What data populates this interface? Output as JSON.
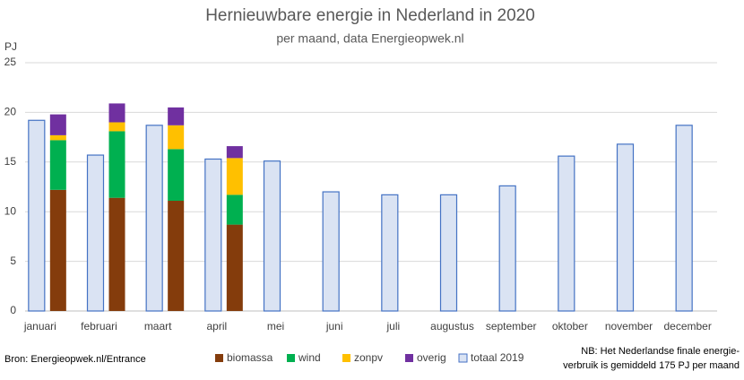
{
  "chart_data": {
    "type": "bar",
    "title": "Hernieuwbare energie in Nederland in 2020",
    "subtitle": "per maand, data Energieopwek.nl",
    "y_label": "PJ",
    "categories": [
      "januari",
      "februari",
      "maart",
      "april",
      "mei",
      "juni",
      "juli",
      "augustus",
      "september",
      "oktober",
      "november",
      "december"
    ],
    "series": [
      {
        "name": "biomassa",
        "color": "#843c0c",
        "stack": "2020",
        "values": [
          12.2,
          11.4,
          11.1,
          8.7,
          null,
          null,
          null,
          null,
          null,
          null,
          null,
          null
        ]
      },
      {
        "name": "wind",
        "color": "#00b050",
        "stack": "2020",
        "values": [
          5.0,
          6.7,
          5.2,
          3.0,
          null,
          null,
          null,
          null,
          null,
          null,
          null,
          null
        ]
      },
      {
        "name": "zonpv",
        "color": "#ffc000",
        "stack": "2020",
        "values": [
          0.5,
          0.9,
          2.4,
          3.7,
          null,
          null,
          null,
          null,
          null,
          null,
          null,
          null
        ]
      },
      {
        "name": "overig",
        "color": "#7030a0",
        "stack": "2020",
        "values": [
          2.1,
          1.9,
          1.8,
          1.2,
          null,
          null,
          null,
          null,
          null,
          null,
          null,
          null
        ]
      },
      {
        "name": "totaal 2019",
        "color": "#dae3f3",
        "stroke": "#4472c4",
        "stack": "2019",
        "values": [
          19.2,
          15.7,
          18.7,
          15.3,
          15.1,
          12.0,
          11.7,
          11.7,
          12.6,
          15.6,
          16.8,
          18.7
        ]
      }
    ],
    "ylim": [
      0,
      25
    ],
    "yticks": [
      0,
      5,
      10,
      15,
      20,
      25
    ],
    "grid": true,
    "legend": "bottom",
    "source": "Bron: Energieopwek.nl/Entrance",
    "note": [
      "NB: Het Nederlandse finale energie-",
      "verbruik is gemiddeld 175 PJ per maand"
    ]
  }
}
